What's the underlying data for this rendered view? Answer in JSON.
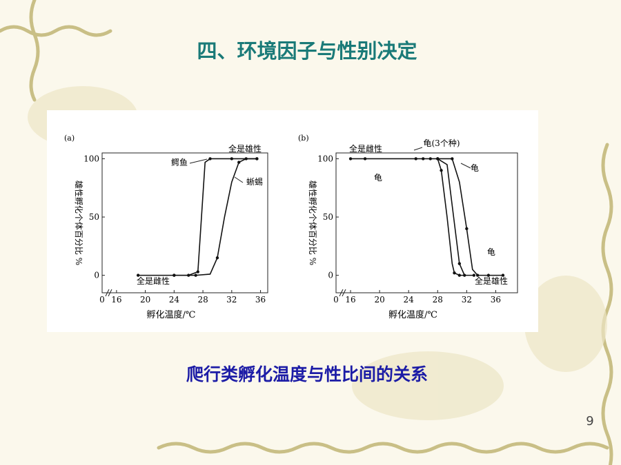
{
  "slide": {
    "title": "四、环境因子与性别决定",
    "caption": "爬行类孵化温度与性比间的关系",
    "page_number": "9"
  },
  "chart_data": [
    {
      "type": "line",
      "panel_label": "(a)",
      "ylabel": "雄性孵化个体百分比 %",
      "xlabel": "孵化温度/℃",
      "axis_break_label": "0",
      "xlim": [
        14,
        37
      ],
      "ylim": [
        -15,
        105
      ],
      "xticks": [
        16,
        20,
        24,
        28,
        32,
        36
      ],
      "yticks": [
        0,
        50,
        100
      ],
      "annotations": [
        "全是雄性",
        "全是雌性",
        "鳄鱼",
        "蜥蜴"
      ],
      "series": [
        {
          "name": "鳄鱼",
          "color": "#111111",
          "x": [
            19,
            24,
            26,
            27.3,
            27.8,
            28.3,
            29,
            32,
            35.5
          ],
          "values": [
            0,
            0,
            0,
            3,
            50,
            97,
            100,
            100,
            100
          ]
        },
        {
          "name": "蜥蜴",
          "color": "#111111",
          "x": [
            24,
            27,
            29,
            30,
            31,
            32,
            33,
            34,
            35.5
          ],
          "values": [
            0,
            0,
            1,
            15,
            50,
            80,
            97,
            100,
            100
          ]
        }
      ]
    },
    {
      "type": "line",
      "panel_label": "(b)",
      "ylabel": "雄性孵化个体百分比 %",
      "xlabel": "孵化温度/℃",
      "axis_break_label": "0",
      "xlim": [
        14,
        39
      ],
      "ylim": [
        -15,
        105
      ],
      "xticks": [
        16,
        20,
        24,
        28,
        32,
        36
      ],
      "yticks": [
        0,
        50,
        100
      ],
      "annotations": [
        "全是雌性",
        "龟(3个种)",
        "龟",
        "龟",
        "龟",
        "全是雄性"
      ],
      "series": [
        {
          "name": "龟",
          "color": "#111111",
          "x": [
            16,
            18,
            25,
            26,
            27,
            28,
            28.5,
            29.3,
            30,
            30.3,
            31,
            33
          ],
          "values": [
            100,
            100,
            100,
            100,
            100,
            100,
            90,
            50,
            10,
            2,
            0,
            0
          ]
        },
        {
          "name": "龟",
          "color": "#111111",
          "x": [
            28,
            29.3,
            30.2,
            31,
            31.7
          ],
          "values": [
            100,
            95,
            50,
            10,
            0
          ]
        },
        {
          "name": "龟",
          "color": "#111111",
          "x": [
            28,
            30,
            31,
            32,
            32.8,
            33.5,
            35,
            37
          ],
          "values": [
            100,
            100,
            80,
            40,
            5,
            0,
            0,
            0
          ]
        }
      ]
    }
  ]
}
